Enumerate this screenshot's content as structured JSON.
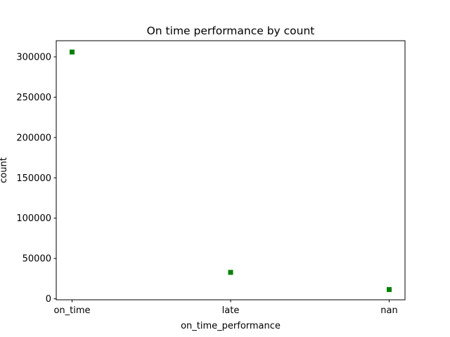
{
  "chart_data": {
    "type": "scatter",
    "title": "On time performance by count",
    "xlabel": "on_time_performance",
    "ylabel": "count",
    "categories": [
      "on_time",
      "late",
      "nan"
    ],
    "values": [
      306000,
      32800,
      11500
    ],
    "ylim": [
      -1200,
      320000
    ],
    "yticks": [
      0,
      50000,
      100000,
      150000,
      200000,
      250000,
      300000
    ],
    "ytick_labels": [
      "0",
      "50000",
      "100000",
      "150000",
      "200000",
      "250000",
      "300000"
    ],
    "marker": "square",
    "color": "#008000",
    "grid": false,
    "legend": "none"
  }
}
